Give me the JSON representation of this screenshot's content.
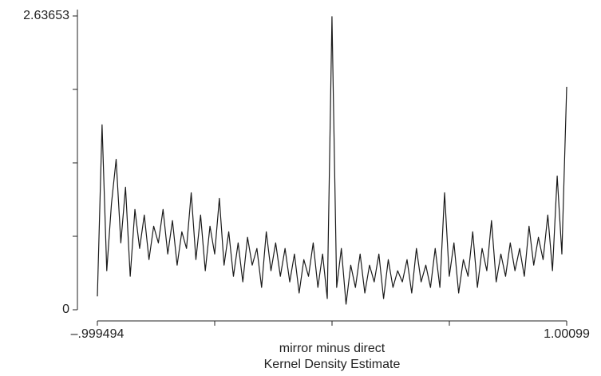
{
  "chart_data": {
    "type": "line",
    "title": "Kernel Density Estimate",
    "xlabel": "mirror minus direct",
    "x": [
      -0.999494,
      -0.9795,
      -0.9595,
      -0.9395,
      -0.9195,
      -0.8995,
      -0.8795,
      -0.8595,
      -0.8395,
      -0.8195,
      -0.7995,
      -0.7795,
      -0.7595,
      -0.7395,
      -0.7195,
      -0.6995,
      -0.6795,
      -0.6595,
      -0.6395,
      -0.6195,
      -0.5995,
      -0.5795,
      -0.5595,
      -0.5395,
      -0.5195,
      -0.4995,
      -0.4795,
      -0.4595,
      -0.4395,
      -0.4195,
      -0.3995,
      -0.3795,
      -0.3595,
      -0.3395,
      -0.3195,
      -0.2995,
      -0.2795,
      -0.2595,
      -0.2395,
      -0.2195,
      -0.1995,
      -0.1795,
      -0.1595,
      -0.1395,
      -0.1195,
      -0.0995,
      -0.0795,
      -0.0595,
      -0.0395,
      -0.0195,
      0.0005,
      0.0205,
      0.0405,
      0.0605,
      0.0805,
      0.1005,
      0.1205,
      0.1405,
      0.1605,
      0.1805,
      0.2005,
      0.2205,
      0.2405,
      0.2605,
      0.2805,
      0.3005,
      0.3205,
      0.3405,
      0.3605,
      0.3805,
      0.4005,
      0.4205,
      0.4405,
      0.4605,
      0.4805,
      0.5005,
      0.5205,
      0.5405,
      0.5605,
      0.5805,
      0.6005,
      0.6205,
      0.6405,
      0.6605,
      0.6805,
      0.7005,
      0.7205,
      0.7405,
      0.7605,
      0.7805,
      0.8005,
      0.8205,
      0.8405,
      0.8605,
      0.8805,
      0.9005,
      0.9205,
      0.9405,
      0.9605,
      0.9805,
      1.00099
    ],
    "series": [
      {
        "color": "#1a1a1a",
        "values": [
          0.12,
          1.66,
          0.35,
          0.95,
          1.35,
          0.6,
          1.1,
          0.3,
          0.9,
          0.55,
          0.85,
          0.45,
          0.75,
          0.6,
          0.9,
          0.5,
          0.8,
          0.4,
          0.7,
          0.55,
          1.05,
          0.45,
          0.85,
          0.35,
          0.75,
          0.5,
          1.0,
          0.4,
          0.7,
          0.3,
          0.6,
          0.25,
          0.65,
          0.4,
          0.55,
          0.2,
          0.7,
          0.35,
          0.6,
          0.3,
          0.55,
          0.25,
          0.5,
          0.15,
          0.45,
          0.3,
          0.6,
          0.2,
          0.5,
          0.1,
          2.63,
          0.2,
          0.55,
          0.05,
          0.4,
          0.2,
          0.5,
          0.15,
          0.4,
          0.25,
          0.5,
          0.1,
          0.45,
          0.2,
          0.35,
          0.25,
          0.45,
          0.15,
          0.55,
          0.25,
          0.4,
          0.2,
          0.55,
          0.2,
          1.05,
          0.3,
          0.6,
          0.15,
          0.45,
          0.3,
          0.7,
          0.2,
          0.55,
          0.35,
          0.8,
          0.25,
          0.5,
          0.3,
          0.6,
          0.35,
          0.55,
          0.3,
          0.75,
          0.4,
          0.65,
          0.45,
          0.85,
          0.35,
          1.2,
          0.5,
          2.0
        ]
      }
    ],
    "xlim": [
      -0.999494,
      1.00099
    ],
    "xticks": [
      {
        "value": -0.999494,
        "label": "–.999494"
      },
      1.00099
    ],
    "xminorticks": [
      -0.499373,
      0.000748,
      0.500869
    ],
    "ylim": [
      0,
      2.63653
    ],
    "yticks": [
      0,
      2.63653
    ],
    "yminorticks": [
      0.659133,
      1.318265,
      1.977398
    ]
  }
}
